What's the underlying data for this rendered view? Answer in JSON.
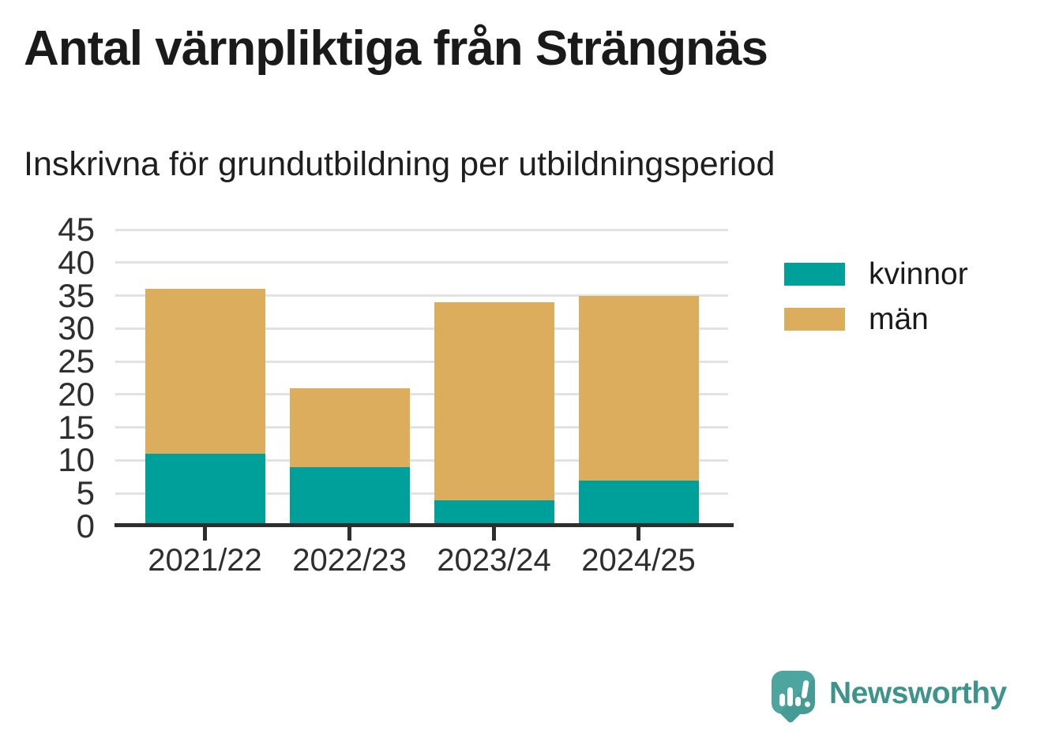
{
  "chart_data": {
    "type": "bar",
    "stacked": true,
    "title": "Antal värnpliktiga från Strängnäs",
    "subtitle": "Inskrivna för grundutbildning per utbildningsperiod",
    "categories": [
      "2021/22",
      "2022/23",
      "2023/24",
      "2024/25"
    ],
    "series": [
      {
        "name": "kvinnor",
        "color": "#00A09A",
        "values": [
          11,
          9,
          4,
          7
        ]
      },
      {
        "name": "män",
        "color": "#DBAD5C",
        "values": [
          25,
          12,
          30,
          28
        ]
      }
    ],
    "stack_totals": [
      36,
      21,
      34,
      35
    ],
    "ylim": [
      0,
      45
    ],
    "ytick_step": 5,
    "yticks": [
      0,
      5,
      10,
      15,
      20,
      25,
      30,
      35,
      40,
      45
    ],
    "xlabel": "",
    "ylabel": "",
    "grid": "horizontal",
    "legend_position": "right"
  },
  "colors": {
    "grid": "#E2E2E2",
    "axis": "#2E2E2E",
    "title_text": "#1A1A1A",
    "tick_text": "#2E2E2E"
  },
  "branding": {
    "name": "Newsworthy",
    "text_color": "#3E948C",
    "icon_color": "#4CA59E",
    "icon_shade_color": "#459C95",
    "icon": "speech-bubble-bar-chart-icon"
  }
}
